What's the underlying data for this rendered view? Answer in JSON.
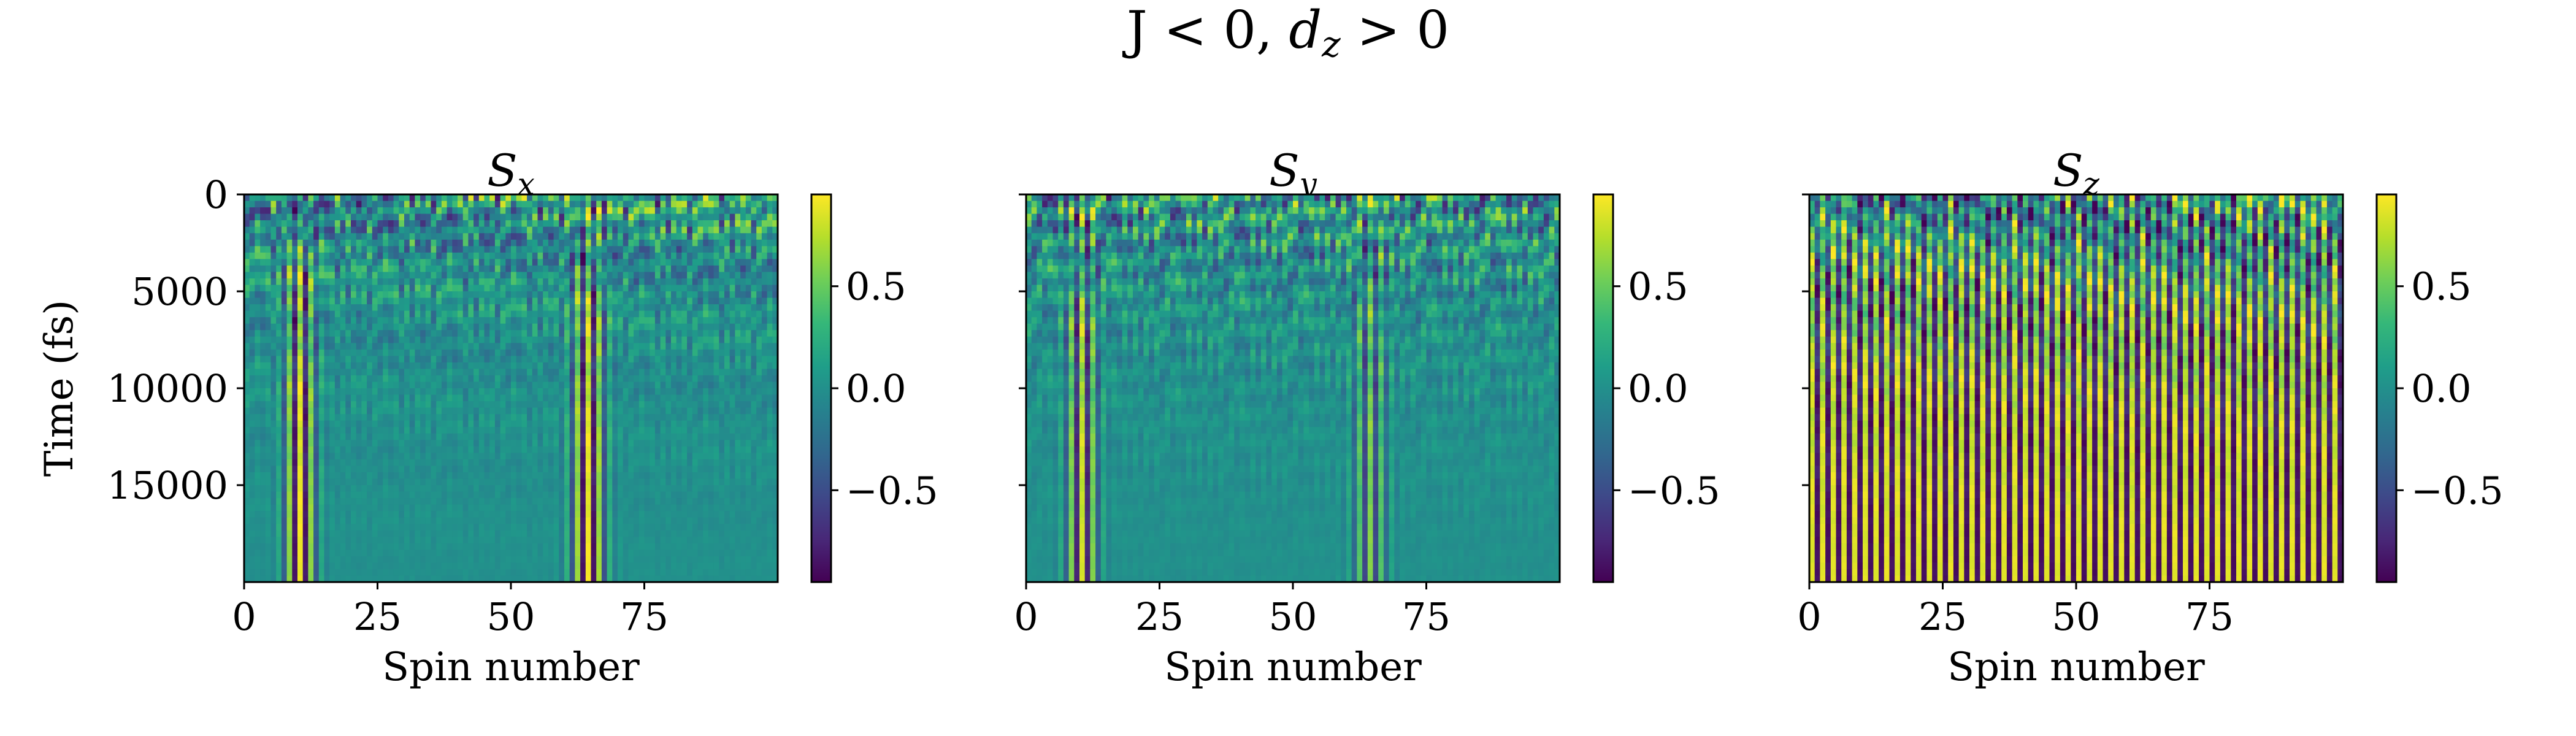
{
  "figure": {
    "title_pre": "J < 0, ",
    "title_var": "d",
    "title_sub": "z",
    "title_post": " > 0"
  },
  "colormap": {
    "name": "viridis",
    "stops": [
      "#440154",
      "#482878",
      "#3e4989",
      "#31688e",
      "#26828e",
      "#1f9e89",
      "#35b779",
      "#6ece58",
      "#b5de2b",
      "#fde725"
    ]
  },
  "chart_data": [
    {
      "type": "heatmap",
      "title_var": "S",
      "title_sub": "x",
      "xlabel": "Spin number",
      "ylabel": "Time (fs)",
      "x_range": [
        0,
        100
      ],
      "y_range": [
        0,
        20000
      ],
      "y_inverted": true,
      "x_ticks": [
        "0",
        "25",
        "50",
        "75"
      ],
      "x_tick_values": [
        0,
        25,
        50,
        75
      ],
      "y_ticks": [
        "0",
        "5000",
        "10000",
        "15000"
      ],
      "y_tick_values": [
        0,
        5000,
        10000,
        15000
      ],
      "colorbar": {
        "range": [
          -0.95,
          0.95
        ],
        "ticks": [
          "0.5",
          "0.0",
          "−0.5"
        ],
        "tick_values": [
          0.5,
          0.0,
          -0.5
        ]
      }
    },
    {
      "type": "heatmap",
      "title_var": "S",
      "title_sub": "y",
      "xlabel": "Spin number",
      "ylabel": "",
      "x_range": [
        0,
        100
      ],
      "y_range": [
        0,
        20000
      ],
      "y_inverted": true,
      "x_ticks": [
        "0",
        "25",
        "50",
        "75"
      ],
      "x_tick_values": [
        0,
        25,
        50,
        75
      ],
      "y_ticks": [],
      "y_tick_values": [
        0,
        5000,
        10000,
        15000
      ],
      "colorbar": {
        "range": [
          -0.95,
          0.95
        ],
        "ticks": [
          "0.5",
          "0.0",
          "−0.5"
        ],
        "tick_values": [
          0.5,
          0.0,
          -0.5
        ]
      }
    },
    {
      "type": "heatmap",
      "title_var": "S",
      "title_sub": "z",
      "xlabel": "Spin number",
      "ylabel": "",
      "x_range": [
        0,
        100
      ],
      "y_range": [
        0,
        20000
      ],
      "y_inverted": true,
      "x_ticks": [
        "0",
        "25",
        "50",
        "75"
      ],
      "x_tick_values": [
        0,
        25,
        50,
        75
      ],
      "y_ticks": [],
      "y_tick_values": [
        0,
        5000,
        10000,
        15000
      ],
      "colorbar": {
        "range": [
          -0.95,
          0.95
        ],
        "ticks": [
          "0.5",
          "0.0",
          "−0.5"
        ],
        "tick_values": [
          0.5,
          0.0,
          -0.5
        ]
      }
    }
  ]
}
